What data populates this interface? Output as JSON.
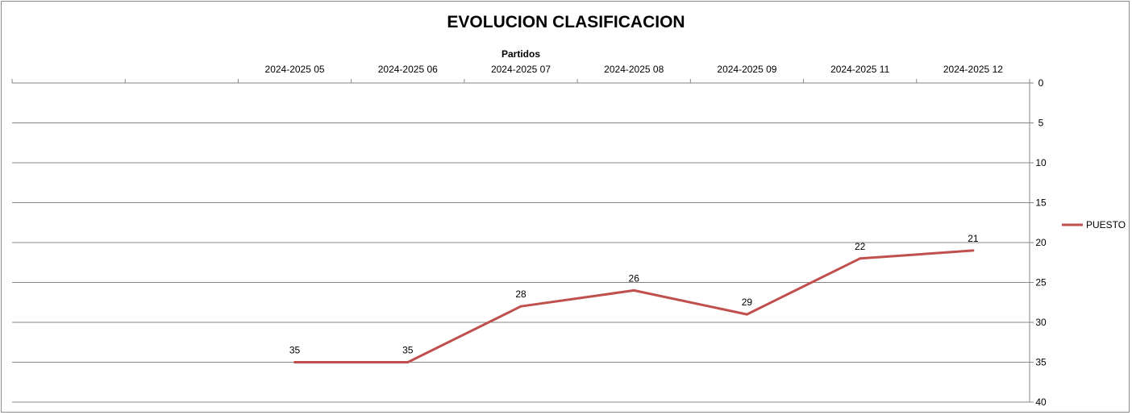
{
  "chart_data": {
    "type": "line",
    "title": "EVOLUCION CLASIFICACION",
    "xlabel": "Partidos",
    "ylabel": "",
    "categories": [
      "",
      "",
      "2024-2025 05",
      "2024-2025 06",
      "2024-2025 07",
      "2024-2025 08",
      "2024-2025 09",
      "2024-2025 11",
      "2024-2025 12"
    ],
    "series": [
      {
        "name": "PUESTO",
        "color": "#c0504d",
        "values": [
          null,
          null,
          35,
          35,
          28,
          26,
          29,
          22,
          21
        ]
      }
    ],
    "ylim": [
      0,
      40
    ],
    "y_reversed": true,
    "y_ticks": [
      0,
      5,
      10,
      15,
      20,
      25,
      30,
      35,
      40
    ],
    "x_axis_position": "top",
    "y_axis_position": "right",
    "grid": "horizontal",
    "legend": "right",
    "data_labels": true
  }
}
